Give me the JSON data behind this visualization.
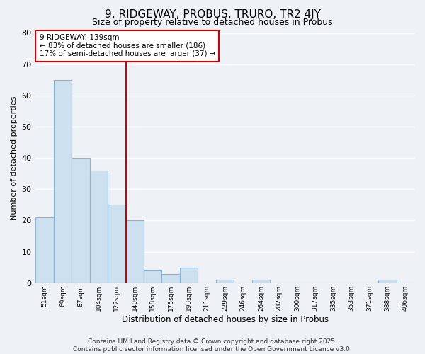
{
  "title": "9, RIDGEWAY, PROBUS, TRURO, TR2 4JY",
  "subtitle": "Size of property relative to detached houses in Probus",
  "xlabel": "Distribution of detached houses by size in Probus",
  "ylabel": "Number of detached properties",
  "categories": [
    "51sqm",
    "69sqm",
    "87sqm",
    "104sqm",
    "122sqm",
    "140sqm",
    "158sqm",
    "175sqm",
    "193sqm",
    "211sqm",
    "229sqm",
    "246sqm",
    "264sqm",
    "282sqm",
    "300sqm",
    "317sqm",
    "335sqm",
    "353sqm",
    "371sqm",
    "388sqm",
    "406sqm"
  ],
  "values": [
    21,
    65,
    40,
    36,
    25,
    20,
    4,
    3,
    5,
    0,
    1,
    0,
    1,
    0,
    0,
    0,
    0,
    0,
    0,
    1,
    0
  ],
  "bar_color": "#cce0f0",
  "bar_edge_color": "#8ab4d4",
  "highlight_line_color": "#cc0000",
  "highlight_bar_index": 5,
  "annotation_title": "9 RIDGEWAY: 139sqm",
  "annotation_line1": "← 83% of detached houses are smaller (186)",
  "annotation_line2": "17% of semi-detached houses are larger (37) →",
  "annotation_box_color": "#ffffff",
  "annotation_box_edge_color": "#cc0000",
  "ylim": [
    0,
    80
  ],
  "yticks": [
    0,
    10,
    20,
    30,
    40,
    50,
    60,
    70,
    80
  ],
  "background_color": "#eef2f7",
  "grid_color": "#ffffff",
  "footer_line1": "Contains HM Land Registry data © Crown copyright and database right 2025.",
  "footer_line2": "Contains public sector information licensed under the Open Government Licence v3.0.",
  "title_fontsize": 11,
  "subtitle_fontsize": 9,
  "footer_fontsize": 6.5
}
